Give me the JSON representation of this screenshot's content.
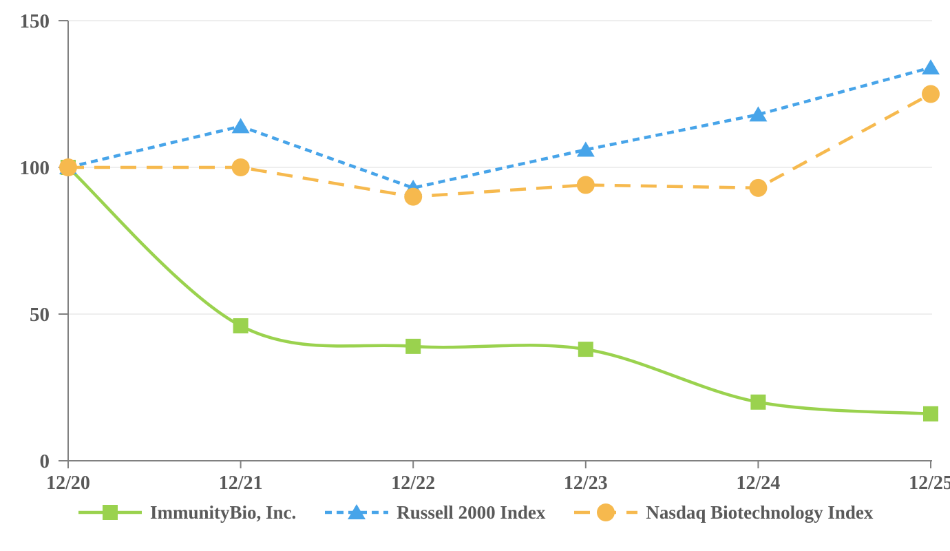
{
  "chart_data": {
    "type": "line",
    "title": "",
    "categories": [
      "12/20",
      "12/21",
      "12/22",
      "12/23",
      "12/24",
      "12/25"
    ],
    "series": [
      {
        "name": "ImmunityBio, Inc.",
        "values": [
          100,
          46,
          39,
          38,
          20,
          16
        ],
        "color": "#9AD24E",
        "marker": "square",
        "line_style": "solid",
        "smooth": true
      },
      {
        "name": "Russell 2000 Index",
        "values": [
          100,
          114,
          93,
          106,
          118,
          134
        ],
        "color": "#47A4E9",
        "marker": "triangle",
        "line_style": "short-dash",
        "smooth": false
      },
      {
        "name": "Nasdaq Biotechnology Index",
        "values": [
          100,
          100,
          90,
          94,
          93,
          125
        ],
        "color": "#F6B94E",
        "marker": "circle",
        "line_style": "long-dash",
        "smooth": false
      }
    ],
    "xlabel": "",
    "ylabel": "",
    "ylim": [
      0,
      150
    ],
    "yticks": [
      0,
      50,
      100,
      150
    ],
    "grid": true,
    "legend_position": "bottom"
  },
  "axis_style": {
    "text_color": "#595959",
    "axis_color": "#808080",
    "gridline_color": "#E8E8E8"
  }
}
